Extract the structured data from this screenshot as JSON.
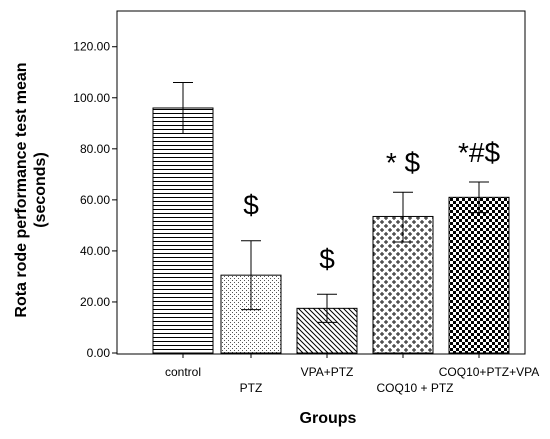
{
  "chart_data": {
    "type": "bar",
    "title": "",
    "xlabel": "Groups",
    "ylabel_line1": "Rota rode performance test mean",
    "ylabel_line2": "(seconds)",
    "ylim": [
      0,
      134
    ],
    "yticks": [
      "0.00",
      "20.00",
      "40.00",
      "60.00",
      "80.00",
      "100.00",
      "120.00"
    ],
    "categories": [
      "control",
      "PTZ",
      "VPA+PTZ",
      "COQ10 + PTZ",
      "COQ10+PTZ+VPA"
    ],
    "values": [
      96,
      30.5,
      17.5,
      53.5,
      61
    ],
    "error_bars": [
      {
        "low": 86,
        "high": 106
      },
      {
        "low": 17,
        "high": 44
      },
      {
        "low": 12,
        "high": 23
      },
      {
        "low": 43.5,
        "high": 63
      },
      {
        "low": 55,
        "high": 67
      }
    ],
    "patterns": [
      "horizontal-lines",
      "sparse-dots",
      "diagonal-lines",
      "plus-crosses",
      "checkerboard"
    ],
    "annotations": [
      "",
      "$",
      "$",
      "* $",
      "*#$"
    ],
    "grid": false,
    "colors": {
      "bar_fill": "#ffffff",
      "ink": "#000000"
    }
  }
}
